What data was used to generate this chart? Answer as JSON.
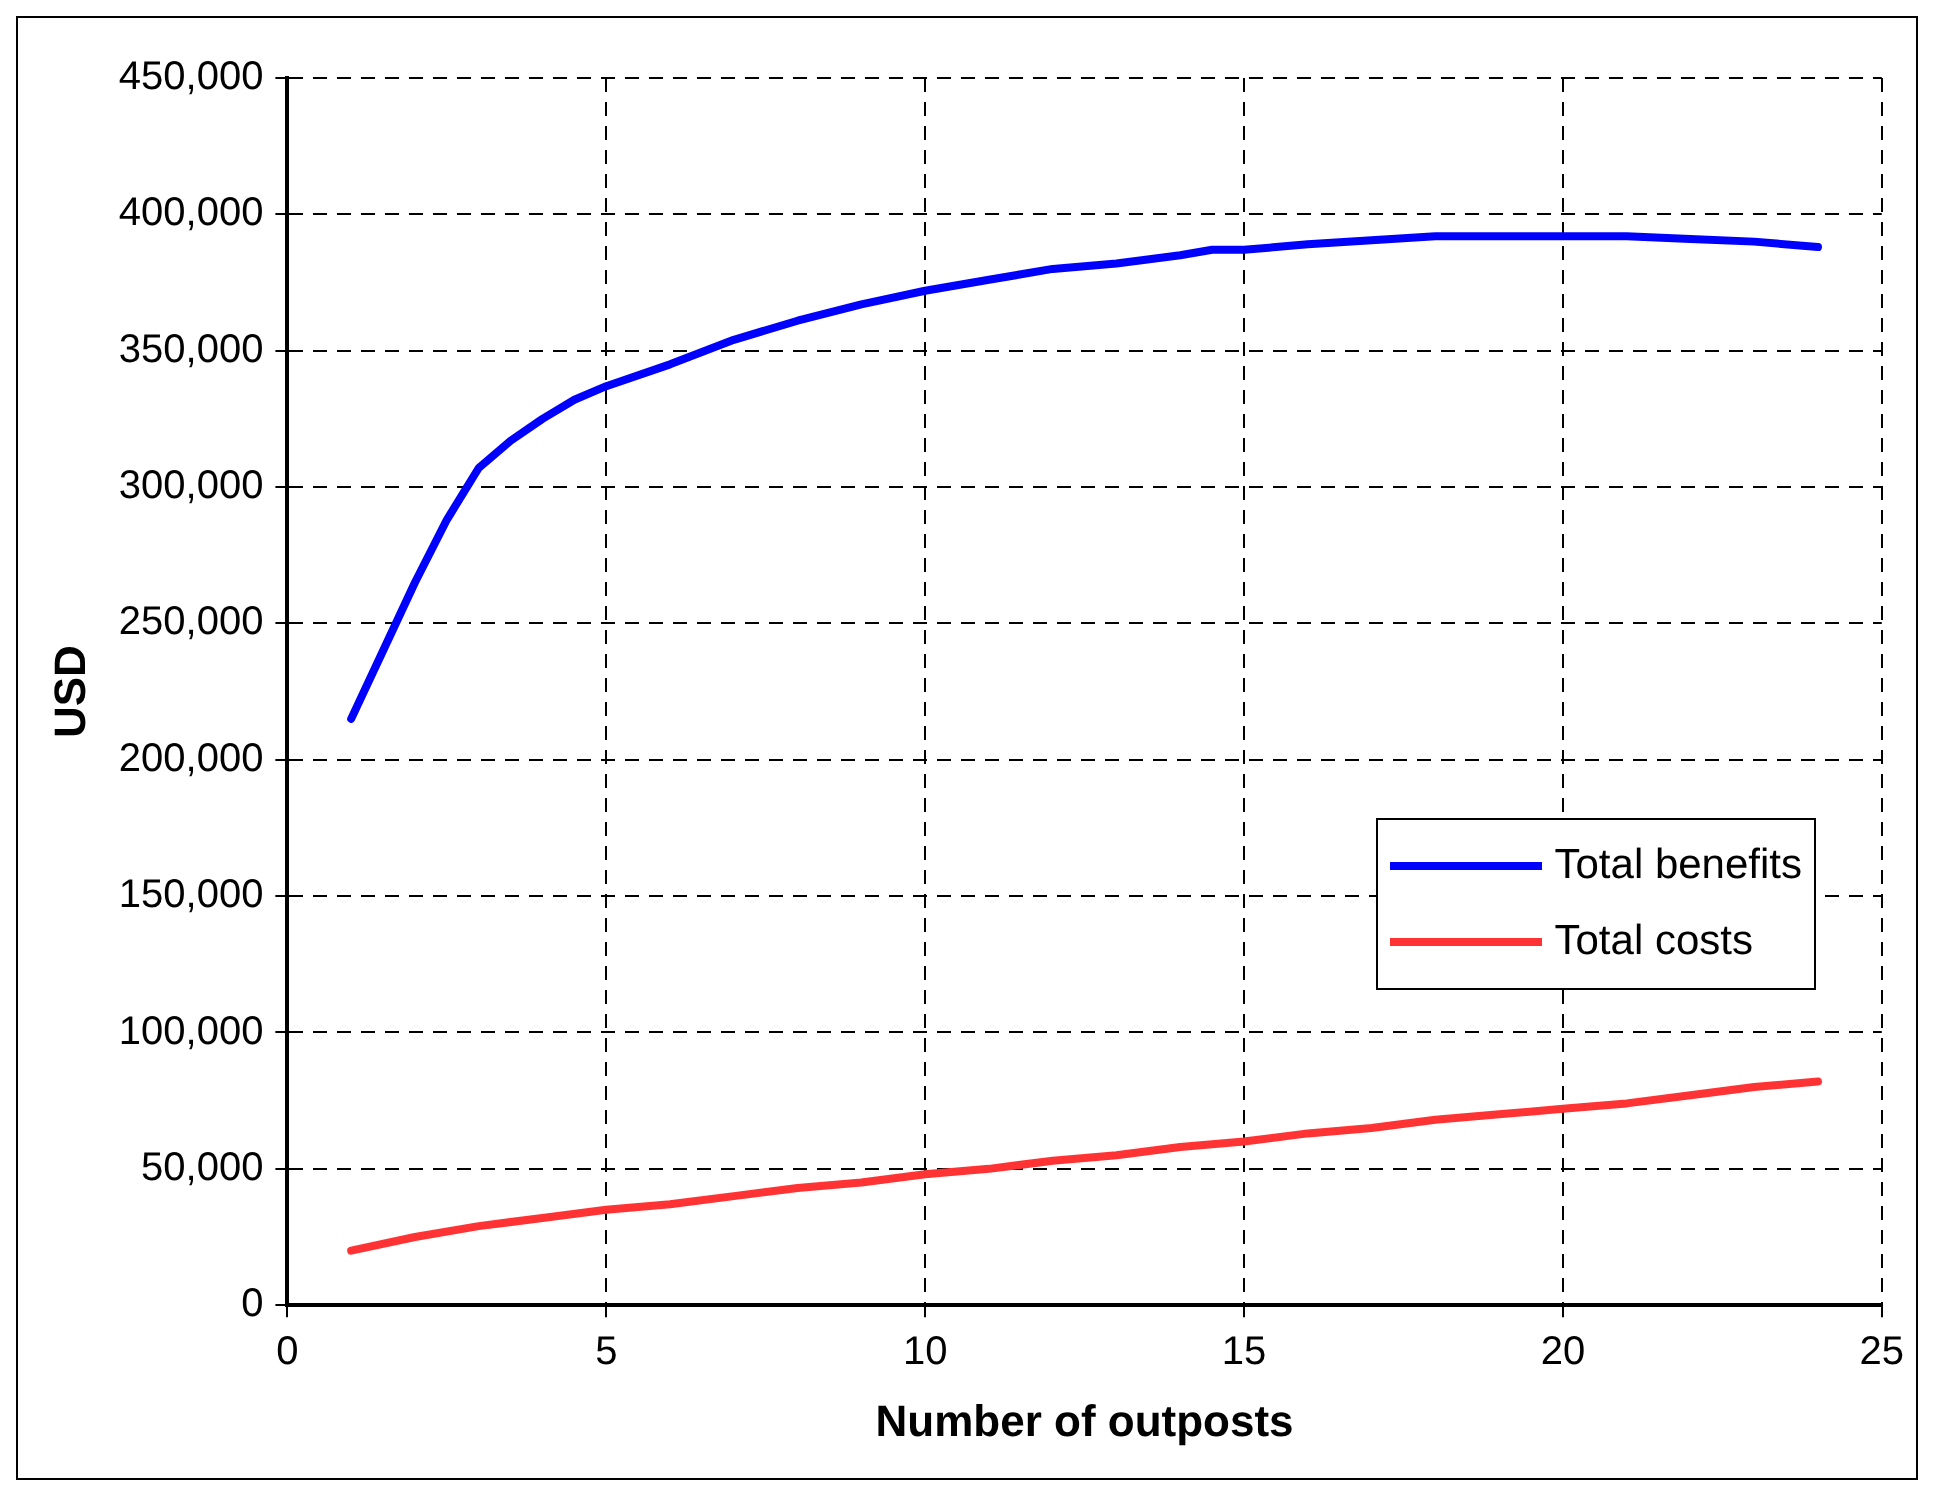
{
  "chart_data": {
    "type": "line",
    "xlabel": "Number of outposts",
    "ylabel": "USD",
    "xlim": [
      0,
      25
    ],
    "xticks": [
      0,
      5,
      10,
      15,
      20,
      25
    ],
    "ylim": [
      0,
      450000
    ],
    "yticks": [
      0,
      {
        "value": 50000,
        "label": "50,000"
      },
      {
        "value": 100000,
        "label": "100,000"
      },
      {
        "value": 150000,
        "label": "150,000"
      },
      {
        "value": 200000,
        "label": "200,000"
      },
      {
        "value": 250000,
        "label": "250,000"
      },
      {
        "value": 300000,
        "label": "300,000"
      },
      {
        "value": 350000,
        "label": "350,000"
      },
      {
        "value": 400000,
        "label": "400,000"
      },
      {
        "value": 450000,
        "label": "450,000"
      }
    ],
    "grid": true,
    "legend": "right",
    "marker": "none",
    "line_style": "solid",
    "series": [
      {
        "name": "Total benefits",
        "color": "#0000ff",
        "x": [
          1,
          1.5,
          2,
          2.5,
          3,
          3.5,
          4,
          4.5,
          5,
          6,
          7,
          8,
          9,
          10,
          11,
          12,
          13,
          14,
          14.5,
          15,
          15.5,
          16,
          17,
          18,
          19,
          20,
          21,
          22,
          23,
          24
        ],
        "values": [
          215000,
          240000,
          265000,
          288000,
          307000,
          317000,
          325000,
          332000,
          337000,
          345000,
          354000,
          361000,
          367000,
          372000,
          376000,
          380000,
          382000,
          385000,
          387000,
          387000,
          388000,
          389000,
          390500,
          392000,
          392000,
          392000,
          392000,
          391000,
          390000,
          388000
        ]
      },
      {
        "name": "Total costs",
        "color": "#ff3333",
        "x": [
          1,
          2,
          3,
          4,
          5,
          6,
          7,
          8,
          9,
          10,
          11,
          12,
          13,
          14,
          15,
          16,
          17,
          18,
          19,
          20,
          21,
          22,
          23,
          24
        ],
        "values": [
          20000,
          25000,
          29000,
          32000,
          35000,
          37000,
          40000,
          43000,
          45000,
          48000,
          50000,
          53000,
          55000,
          58000,
          60000,
          63000,
          65000,
          68000,
          70000,
          72000,
          74000,
          77000,
          80000,
          82000
        ]
      }
    ]
  }
}
